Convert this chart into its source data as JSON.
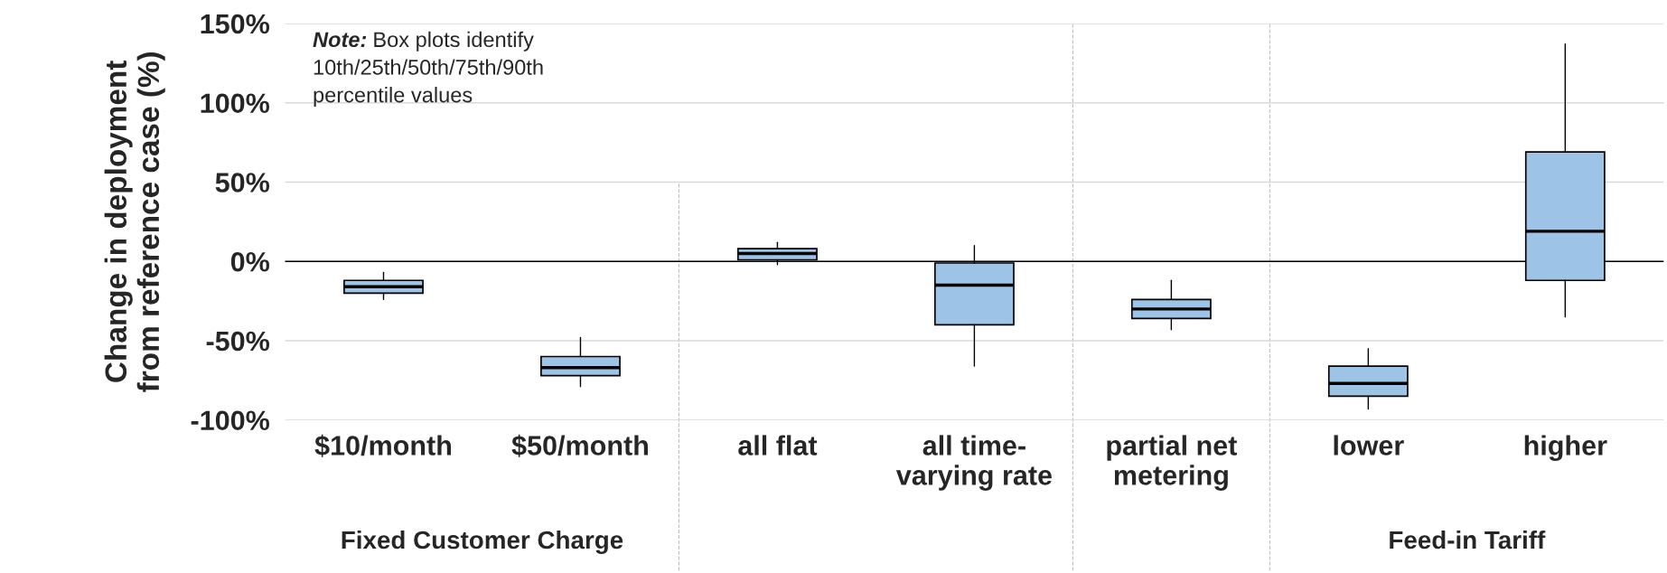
{
  "chart_data": {
    "type": "box",
    "ylabel": "Change in deployment\nfrom reference case (%)",
    "categories": [
      "$10/month",
      "$50/month",
      "all flat",
      "all time-\nvarying rate",
      "partial net\nmetering",
      "lower",
      "higher"
    ],
    "boxes": [
      {
        "low": -24,
        "q1": -20,
        "median": -16,
        "q3": -12,
        "high": -7
      },
      {
        "low": -79,
        "q1": -72,
        "median": -67,
        "q3": -60,
        "high": -48
      },
      {
        "low": -2,
        "q1": 1,
        "median": 5,
        "q3": 8,
        "high": 12
      },
      {
        "low": -66,
        "q1": -40,
        "median": -15,
        "q3": -1,
        "high": 10
      },
      {
        "low": -43,
        "q1": -36,
        "median": -30,
        "q3": -24,
        "high": -12
      },
      {
        "low": -93,
        "q1": -85,
        "median": -77,
        "q3": -66,
        "high": -55
      },
      {
        "low": -35,
        "q1": -12,
        "median": 19,
        "q3": 69,
        "high": 137
      }
    ],
    "color": "#9dc3e6",
    "ylim": [
      -100,
      150
    ],
    "yticks": [
      {
        "value": -100,
        "label": "-100%"
      },
      {
        "value": -50,
        "label": "-50%"
      },
      {
        "value": 0,
        "label": "0%"
      },
      {
        "value": 50,
        "label": "50%"
      },
      {
        "value": 100,
        "label": "100%"
      },
      {
        "value": 150,
        "label": "150%"
      }
    ],
    "grid": "y",
    "ref_lines": [
      {
        "axis": "y",
        "value": 0,
        "color": "#000000",
        "line_style": "solid"
      }
    ],
    "annotations": [
      "Note: Box plots identify\n10th/25th/50th/75th/90th\npercentile values",
      "Fixed Customer Charge",
      "Feed-in Tariff"
    ]
  }
}
